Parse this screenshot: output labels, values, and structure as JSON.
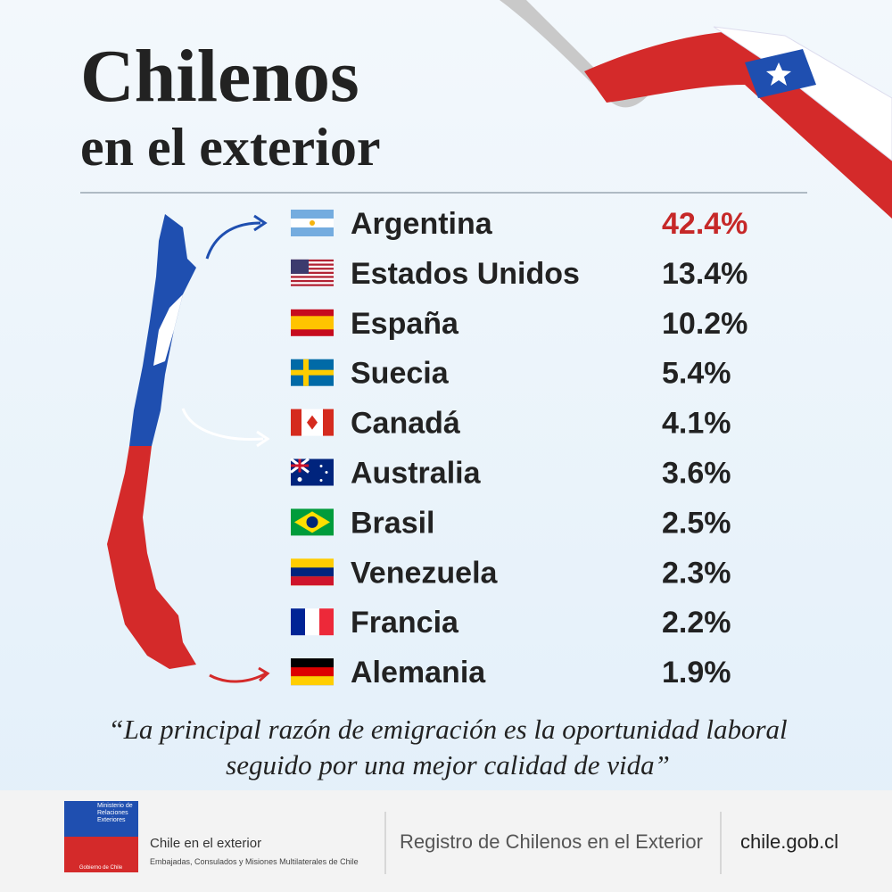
{
  "header": {
    "title": "Chilenos",
    "subtitle": "en el exterior"
  },
  "table": {
    "rows": [
      [
        "Argentina",
        "42.4%"
      ],
      [
        "Estados Unidos",
        "13.4%"
      ],
      [
        "España",
        "10.2%"
      ],
      [
        "Suecia",
        "5.4%"
      ],
      [
        "Canadá",
        "4.1%"
      ],
      [
        "Australia",
        "3.6%"
      ],
      [
        "Brasil",
        "2.5%"
      ],
      [
        "Venezuela",
        "2.3%"
      ],
      [
        "Francia",
        "2.2%"
      ],
      [
        "Alemania",
        "1.9%"
      ]
    ]
  },
  "quote": [
    "“La principal razón de emigración es la oportunidad laboral",
    "seguido por una mejor calidad de vida”"
  ],
  "footer": {
    "logo": [
      "Ministerio de",
      "Relaciones",
      "Exteriores",
      "Gobierno de Chile"
    ],
    "brand": "Chile en el exterior",
    "brand_sub": "Embajadas, Consulados y Misiones Multilaterales de Chile",
    "registry": "Registro de Chilenos en el Exterior",
    "site": "chile.gob.cl"
  }
}
